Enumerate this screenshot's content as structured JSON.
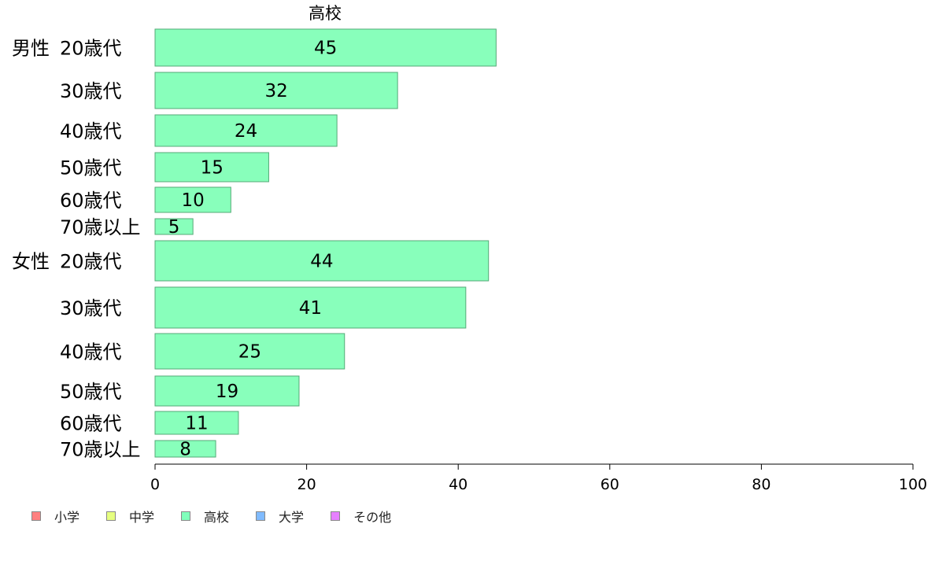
{
  "chart_data": {
    "type": "bar",
    "orientation": "horizontal",
    "title": "高校",
    "groups": [
      {
        "name": "男性",
        "categories": [
          "20歳代",
          "30歳代",
          "40歳代",
          "50歳代",
          "60歳代",
          "70歳以上"
        ],
        "values": [
          45,
          32,
          24,
          15,
          10,
          5
        ],
        "data_labels": [
          "45",
          "32",
          "24",
          "15",
          "10",
          "5"
        ]
      },
      {
        "name": "女性",
        "categories": [
          "20歳代",
          "30歳代",
          "40歳代",
          "50歳代",
          "60歳代",
          "70歳以上"
        ],
        "values": [
          44,
          41,
          25,
          19,
          11,
          8
        ],
        "data_labels": [
          "44",
          "41",
          "25",
          "19",
          "11",
          "8"
        ]
      }
    ],
    "xlim": [
      0,
      100
    ],
    "x_ticks": [
      "0",
      "20",
      "40",
      "60",
      "80",
      "100"
    ],
    "grid": false,
    "legend_position": "bottom-left",
    "legend": [
      {
        "label": "小学",
        "color": "#ff8080"
      },
      {
        "label": "中学",
        "color": "#e6ff80"
      },
      {
        "label": "高校",
        "color": "#80ffbb"
      },
      {
        "label": "大学",
        "color": "#80bbff"
      },
      {
        "label": "その他",
        "color": "#e680ff"
      }
    ],
    "bar_color": "#88ffbb",
    "bar_border_color": "#55aa77"
  }
}
